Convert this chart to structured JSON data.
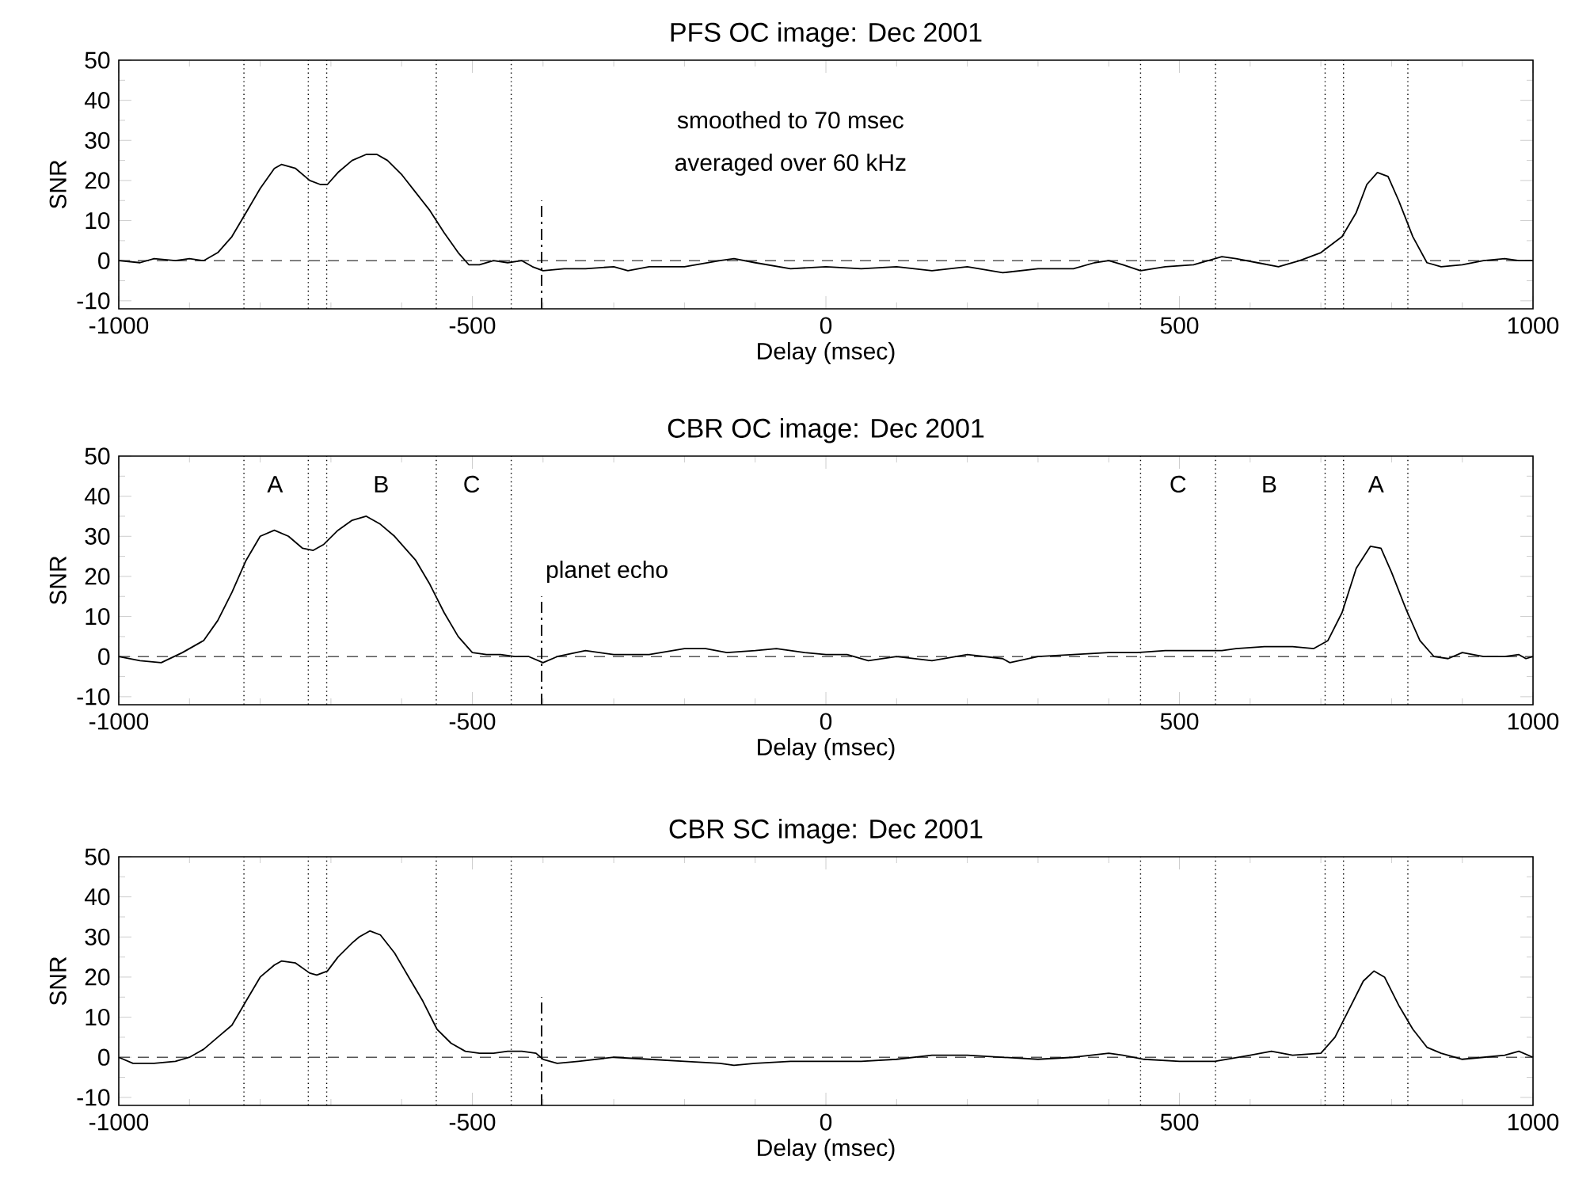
{
  "chart_data": [
    {
      "type": "line",
      "title": "PFS OC image: Dec 2001",
      "xlabel": "Delay (msec)",
      "ylabel": "SNR",
      "xlim": [
        -1000,
        1000
      ],
      "ylim": [
        -12,
        50
      ],
      "xticks": [
        -1000,
        -500,
        0,
        500,
        1000
      ],
      "yticks": [
        -10,
        0,
        10,
        20,
        30,
        40,
        50
      ],
      "ref_lines": [
        {
          "axis": "y",
          "value": 0,
          "line_style": "dashed",
          "color": "#555555"
        },
        {
          "axis": "x",
          "value": -823,
          "line_style": "dotted",
          "color": "#000000"
        },
        {
          "axis": "x",
          "value": -732,
          "line_style": "dotted",
          "color": "#000000"
        },
        {
          "axis": "x",
          "value": -706,
          "line_style": "dotted",
          "color": "#000000"
        },
        {
          "axis": "x",
          "value": -551,
          "line_style": "dotted",
          "color": "#000000"
        },
        {
          "axis": "x",
          "value": -445,
          "line_style": "dotted",
          "color": "#000000"
        },
        {
          "axis": "x",
          "value": 445,
          "line_style": "dotted",
          "color": "#000000"
        },
        {
          "axis": "x",
          "value": 551,
          "line_style": "dotted",
          "color": "#000000"
        },
        {
          "axis": "x",
          "value": 706,
          "line_style": "dotted",
          "color": "#000000"
        },
        {
          "axis": "x",
          "value": 732,
          "line_style": "dotted",
          "color": "#000000"
        },
        {
          "axis": "x",
          "value": 823,
          "line_style": "dotted",
          "color": "#000000"
        }
      ],
      "annotations": [
        "smoothed to 70 msec",
        "averaged over 60 kHz"
      ],
      "series": [
        {
          "color": "#000000",
          "line_style": "solid",
          "x": [
            -1000,
            -970,
            -950,
            -920,
            -900,
            -880,
            -860,
            -840,
            -820,
            -800,
            -780,
            -770,
            -750,
            -730,
            -715,
            -705,
            -690,
            -670,
            -650,
            -635,
            -620,
            -600,
            -580,
            -560,
            -540,
            -520,
            -505,
            -490,
            -470,
            -450,
            -430,
            -415,
            -400,
            -370,
            -340,
            -300,
            -280,
            -250,
            -200,
            -150,
            -130,
            -100,
            -50,
            0,
            50,
            100,
            150,
            200,
            250,
            300,
            350,
            380,
            400,
            420,
            445,
            480,
            520,
            560,
            580,
            610,
            640,
            670,
            700,
            730,
            750,
            765,
            780,
            795,
            810,
            830,
            850,
            870,
            900,
            930,
            960,
            980,
            1000
          ],
          "values": [
            0,
            -0.5,
            0.5,
            0,
            0.5,
            0,
            2,
            6,
            12,
            18,
            23,
            24,
            23,
            20,
            19,
            19,
            22,
            25,
            26.5,
            26.5,
            25,
            21.5,
            17,
            12.5,
            7,
            2,
            -1,
            -1,
            0,
            -0.5,
            0,
            -1.5,
            -2.5,
            -2,
            -2,
            -1.5,
            -2.5,
            -1.5,
            -1.5,
            0,
            0.5,
            -0.5,
            -2,
            -1.5,
            -2,
            -1.5,
            -2.5,
            -1.5,
            -3,
            -2,
            -2,
            -0.5,
            0,
            -1,
            -2.5,
            -1.5,
            -1,
            1,
            0.5,
            -0.5,
            -1.5,
            0,
            2,
            6,
            12,
            19,
            22,
            21,
            15,
            6,
            -0.5,
            -1.5,
            -1,
            0,
            0.5,
            0,
            0
          ]
        },
        {
          "color": "#000000",
          "line_style": "dashdot",
          "x": [
            -402,
            -402
          ],
          "values": [
            -12,
            15
          ]
        }
      ]
    },
    {
      "type": "line",
      "title": "CBR OC image: Dec 2001",
      "xlabel": "Delay (msec)",
      "ylabel": "SNR",
      "xlim": [
        -1000,
        1000
      ],
      "ylim": [
        -12,
        50
      ],
      "xticks": [
        -1000,
        -500,
        0,
        500,
        1000
      ],
      "yticks": [
        -10,
        0,
        10,
        20,
        30,
        40,
        50
      ],
      "ref_lines": [
        {
          "axis": "y",
          "value": 0,
          "line_style": "dashed",
          "color": "#555555"
        },
        {
          "axis": "x",
          "value": -823,
          "line_style": "dotted",
          "color": "#000000"
        },
        {
          "axis": "x",
          "value": -732,
          "line_style": "dotted",
          "color": "#000000"
        },
        {
          "axis": "x",
          "value": -706,
          "line_style": "dotted",
          "color": "#000000"
        },
        {
          "axis": "x",
          "value": -551,
          "line_style": "dotted",
          "color": "#000000"
        },
        {
          "axis": "x",
          "value": -445,
          "line_style": "dotted",
          "color": "#000000"
        },
        {
          "axis": "x",
          "value": 445,
          "line_style": "dotted",
          "color": "#000000"
        },
        {
          "axis": "x",
          "value": 551,
          "line_style": "dotted",
          "color": "#000000"
        },
        {
          "axis": "x",
          "value": 706,
          "line_style": "dotted",
          "color": "#000000"
        },
        {
          "axis": "x",
          "value": 732,
          "line_style": "dotted",
          "color": "#000000"
        },
        {
          "axis": "x",
          "value": 823,
          "line_style": "dotted",
          "color": "#000000"
        }
      ],
      "annotations": [
        "A",
        "B",
        "C",
        "planet echo",
        "C",
        "B",
        "A"
      ],
      "series": [
        {
          "color": "#000000",
          "line_style": "solid",
          "x": [
            -1000,
            -970,
            -940,
            -910,
            -880,
            -860,
            -840,
            -820,
            -800,
            -780,
            -760,
            -740,
            -725,
            -710,
            -690,
            -670,
            -650,
            -630,
            -610,
            -580,
            -560,
            -540,
            -520,
            -500,
            -480,
            -460,
            -440,
            -420,
            -400,
            -380,
            -340,
            -300,
            -250,
            -200,
            -170,
            -140,
            -100,
            -70,
            -30,
            0,
            30,
            60,
            100,
            150,
            200,
            250,
            260,
            300,
            350,
            400,
            440,
            480,
            520,
            560,
            580,
            620,
            660,
            690,
            710,
            730,
            750,
            770,
            785,
            800,
            820,
            840,
            860,
            880,
            900,
            930,
            960,
            980,
            990,
            1000
          ],
          "values": [
            0,
            -1,
            -1.5,
            1,
            4,
            9,
            16,
            24,
            30,
            31.5,
            30,
            27,
            26.5,
            28,
            31.5,
            34,
            35,
            33,
            30,
            24,
            18,
            11,
            5,
            1,
            0.5,
            0.5,
            0,
            0,
            -1.5,
            0,
            1.5,
            0.5,
            0.5,
            2,
            2,
            1,
            1.5,
            2,
            1,
            0.5,
            0.5,
            -1,
            0,
            -1,
            0.5,
            -0.5,
            -1.5,
            0,
            0.5,
            1,
            1,
            1.5,
            1.5,
            1.5,
            2,
            2.5,
            2.5,
            2,
            4,
            11,
            22,
            27.5,
            27,
            21,
            12,
            4,
            0,
            -0.5,
            1,
            0,
            0,
            0.5,
            -0.5,
            0
          ]
        },
        {
          "color": "#000000",
          "line_style": "dashdot",
          "x": [
            -402,
            -402
          ],
          "values": [
            -12,
            15
          ]
        }
      ]
    },
    {
      "type": "line",
      "title": "CBR SC image: Dec 2001",
      "xlabel": "Delay (msec)",
      "ylabel": "SNR",
      "xlim": [
        -1000,
        1000
      ],
      "ylim": [
        -12,
        50
      ],
      "xticks": [
        -1000,
        -500,
        0,
        500,
        1000
      ],
      "yticks": [
        -10,
        0,
        10,
        20,
        30,
        40,
        50
      ],
      "ref_lines": [
        {
          "axis": "y",
          "value": 0,
          "line_style": "dashed",
          "color": "#555555"
        },
        {
          "axis": "x",
          "value": -823,
          "line_style": "dotted",
          "color": "#000000"
        },
        {
          "axis": "x",
          "value": -732,
          "line_style": "dotted",
          "color": "#000000"
        },
        {
          "axis": "x",
          "value": -706,
          "line_style": "dotted",
          "color": "#000000"
        },
        {
          "axis": "x",
          "value": -551,
          "line_style": "dotted",
          "color": "#000000"
        },
        {
          "axis": "x",
          "value": -445,
          "line_style": "dotted",
          "color": "#000000"
        },
        {
          "axis": "x",
          "value": 445,
          "line_style": "dotted",
          "color": "#000000"
        },
        {
          "axis": "x",
          "value": 551,
          "line_style": "dotted",
          "color": "#000000"
        },
        {
          "axis": "x",
          "value": 706,
          "line_style": "dotted",
          "color": "#000000"
        },
        {
          "axis": "x",
          "value": 732,
          "line_style": "dotted",
          "color": "#000000"
        },
        {
          "axis": "x",
          "value": 823,
          "line_style": "dotted",
          "color": "#000000"
        }
      ],
      "series": [
        {
          "color": "#000000",
          "line_style": "solid",
          "x": [
            -1000,
            -980,
            -950,
            -920,
            -900,
            -880,
            -860,
            -840,
            -820,
            -800,
            -780,
            -770,
            -750,
            -730,
            -720,
            -705,
            -690,
            -670,
            -660,
            -645,
            -630,
            -610,
            -590,
            -570,
            -550,
            -530,
            -510,
            -490,
            -470,
            -450,
            -430,
            -410,
            -400,
            -380,
            -350,
            -300,
            -250,
            -200,
            -150,
            -130,
            -100,
            -50,
            0,
            50,
            100,
            150,
            200,
            250,
            300,
            350,
            400,
            420,
            450,
            500,
            550,
            600,
            630,
            660,
            700,
            720,
            740,
            760,
            775,
            790,
            810,
            830,
            850,
            870,
            900,
            930,
            960,
            980,
            1000
          ],
          "values": [
            0,
            -1.5,
            -1.5,
            -1,
            0,
            2,
            5,
            8,
            14,
            20,
            23,
            24,
            23.5,
            21,
            20.5,
            21.5,
            25,
            28.5,
            30,
            31.5,
            30.5,
            26,
            20,
            14,
            7,
            3.5,
            1.5,
            1,
            1,
            1.5,
            1.5,
            1,
            -0.5,
            -1.5,
            -1,
            0,
            -0.5,
            -1,
            -1.5,
            -2,
            -1.5,
            -1,
            -1,
            -1,
            -0.5,
            0.5,
            0.5,
            0,
            -0.5,
            0,
            1,
            0.5,
            -0.5,
            -1,
            -1,
            0.5,
            1.5,
            0.5,
            1,
            5,
            12,
            19,
            21.5,
            20,
            13,
            7,
            2.5,
            1,
            -0.5,
            0,
            0.5,
            1.5,
            0
          ]
        },
        {
          "color": "#000000",
          "line_style": "dashdot",
          "x": [
            -402,
            -402
          ],
          "values": [
            -12,
            15
          ]
        }
      ]
    }
  ]
}
